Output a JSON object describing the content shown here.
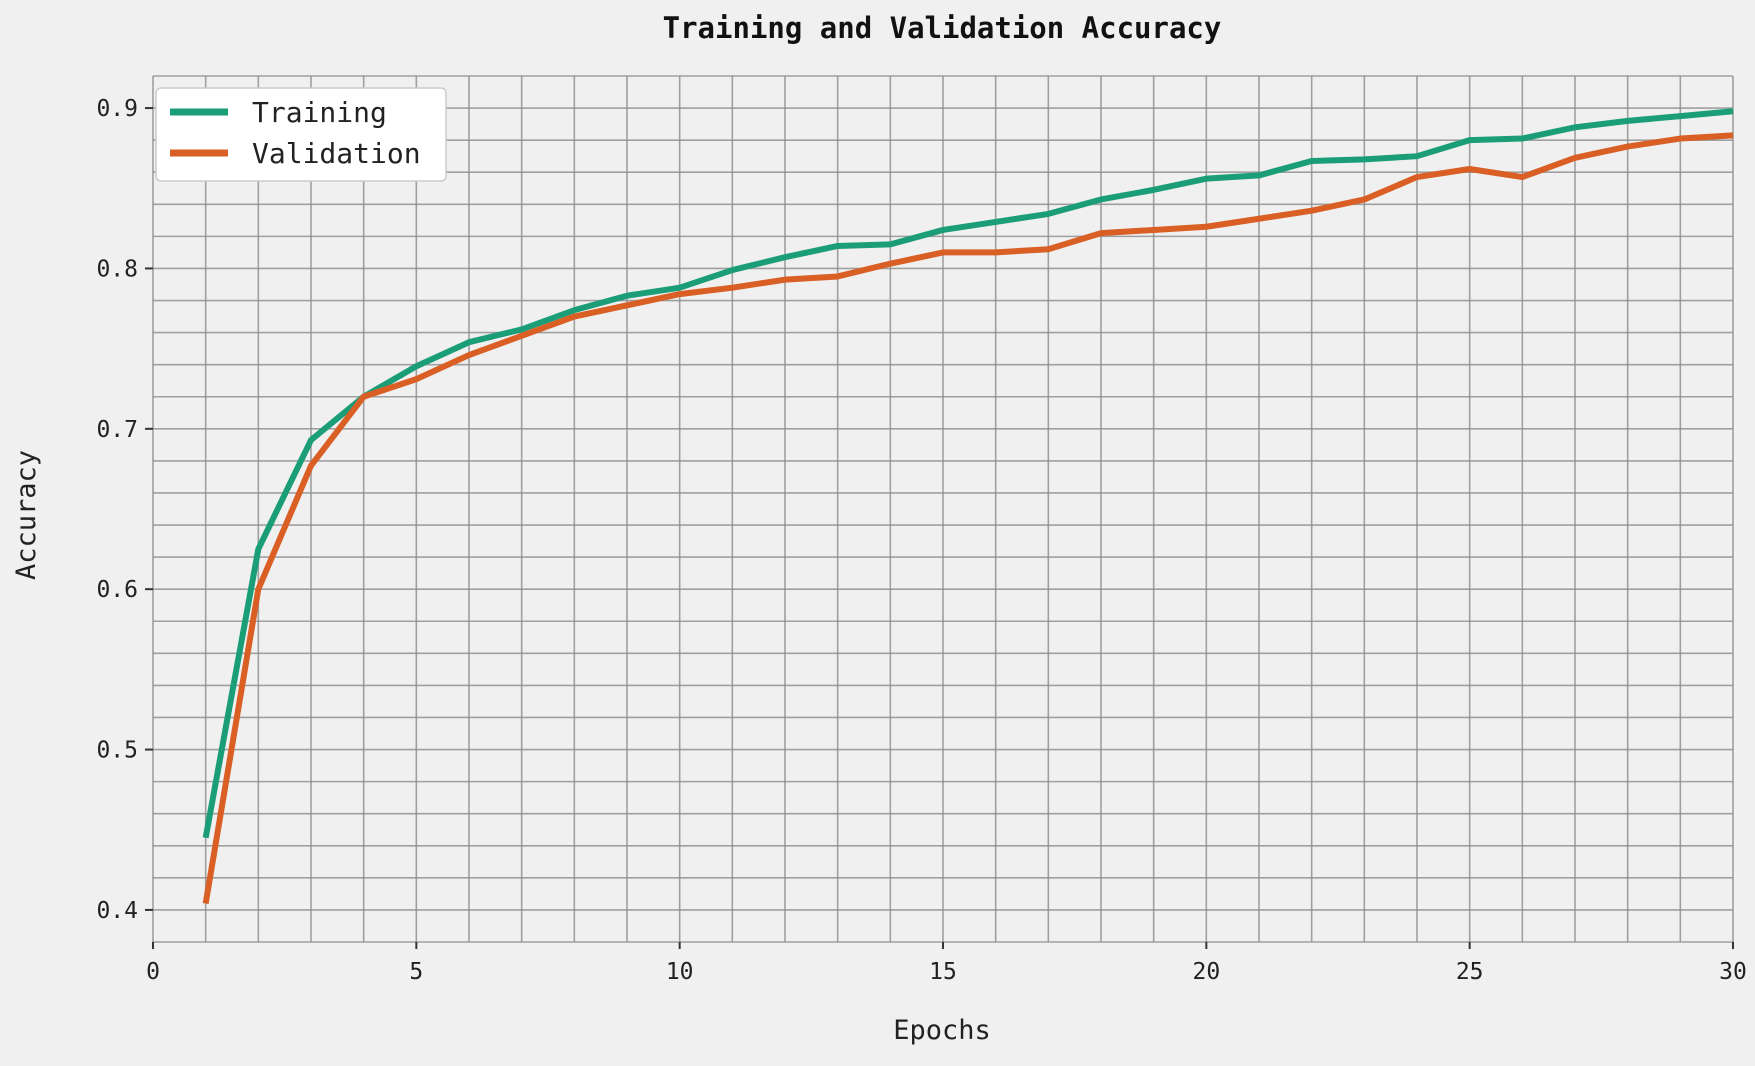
{
  "chart_data": {
    "type": "line",
    "title": "Training and Validation Accuracy",
    "xlabel": "Epochs",
    "ylabel": "Accuracy",
    "xlim": [
      0,
      30
    ],
    "ylim": [
      0.38,
      0.92
    ],
    "x_ticks": [
      "0",
      "5",
      "10",
      "15",
      "20",
      "25",
      "30"
    ],
    "y_ticks": [
      "0.4",
      "0.5",
      "0.6",
      "0.7",
      "0.8",
      "0.9"
    ],
    "grid": true,
    "legend_position": "top-left",
    "x": [
      1,
      2,
      3,
      4,
      5,
      6,
      7,
      8,
      9,
      10,
      11,
      12,
      13,
      14,
      15,
      16,
      17,
      18,
      19,
      20,
      21,
      22,
      23,
      24,
      25,
      26,
      27,
      28,
      29,
      30
    ],
    "series": [
      {
        "name": "Training",
        "color": "#1b9e77",
        "values": [
          0.445,
          0.625,
          0.693,
          0.72,
          0.739,
          0.754,
          0.762,
          0.774,
          0.783,
          0.788,
          0.799,
          0.807,
          0.814,
          0.815,
          0.824,
          0.829,
          0.834,
          0.843,
          0.849,
          0.856,
          0.858,
          0.867,
          0.868,
          0.87,
          0.88,
          0.881,
          0.888,
          0.892,
          0.895,
          0.898
        ]
      },
      {
        "name": "Validation",
        "color": "#d95f25",
        "values": [
          0.404,
          0.6,
          0.677,
          0.72,
          0.731,
          0.746,
          0.758,
          0.77,
          0.777,
          0.784,
          0.788,
          0.793,
          0.795,
          0.803,
          0.81,
          0.81,
          0.812,
          0.822,
          0.824,
          0.826,
          0.831,
          0.836,
          0.843,
          0.857,
          0.862,
          0.857,
          0.869,
          0.876,
          0.881,
          0.883
        ]
      }
    ]
  }
}
